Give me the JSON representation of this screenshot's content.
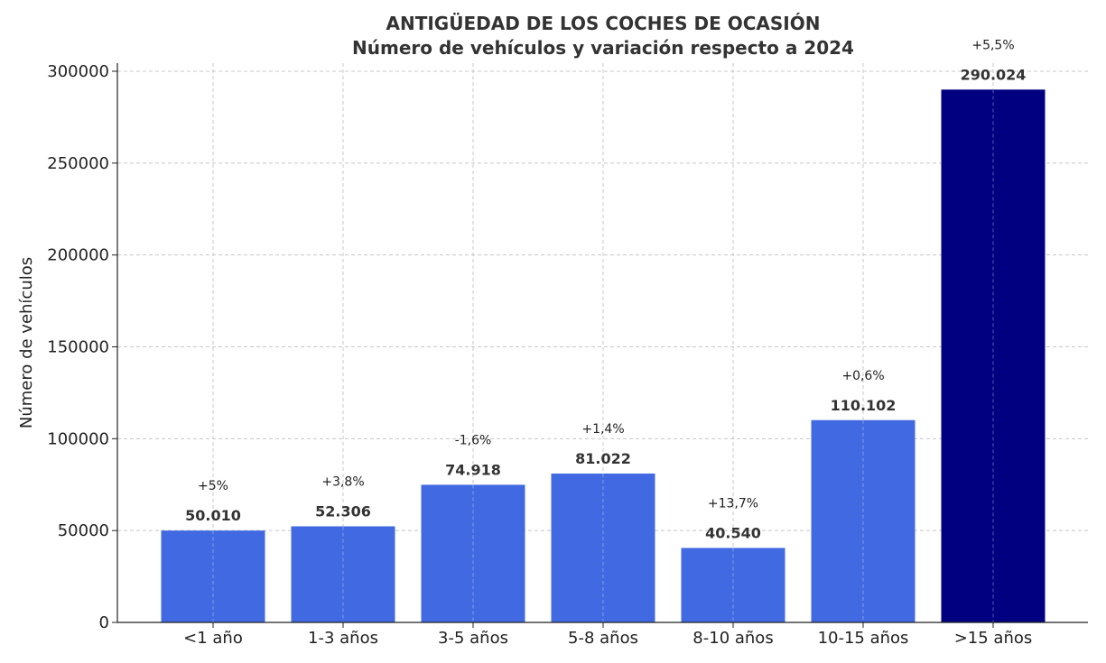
{
  "chart_data": {
    "type": "bar",
    "title": "ANTIGÜEDAD DE LOS COCHES DE OCASIÓN",
    "subtitle": "Número de vehículos y variación respecto a 2024",
    "xlabel": "",
    "ylabel": "Número de vehículos",
    "ylim": [
      0,
      300000
    ],
    "yticks": [
      0,
      50000,
      100000,
      150000,
      200000,
      250000,
      300000
    ],
    "grid": true,
    "categories": [
      "<1 año",
      "1-3 años",
      "3-5 años",
      "5-8 años",
      "8-10 años",
      "10-15 años",
      ">15 años"
    ],
    "values": [
      50010,
      52306,
      74918,
      81022,
      40540,
      110102,
      290024
    ],
    "value_labels": [
      "50.010",
      "52.306",
      "74.918",
      "81.022",
      "40.540",
      "110.102",
      "290.024"
    ],
    "variation_labels": [
      "+5%",
      "+3,8%",
      "-1,6%",
      "+1,4%",
      "+13,7%",
      "+0,6%",
      "+5,5%"
    ],
    "colors": [
      "#4169e1",
      "#4169e1",
      "#4169e1",
      "#4169e1",
      "#4169e1",
      "#4169e1",
      "#000080"
    ]
  }
}
